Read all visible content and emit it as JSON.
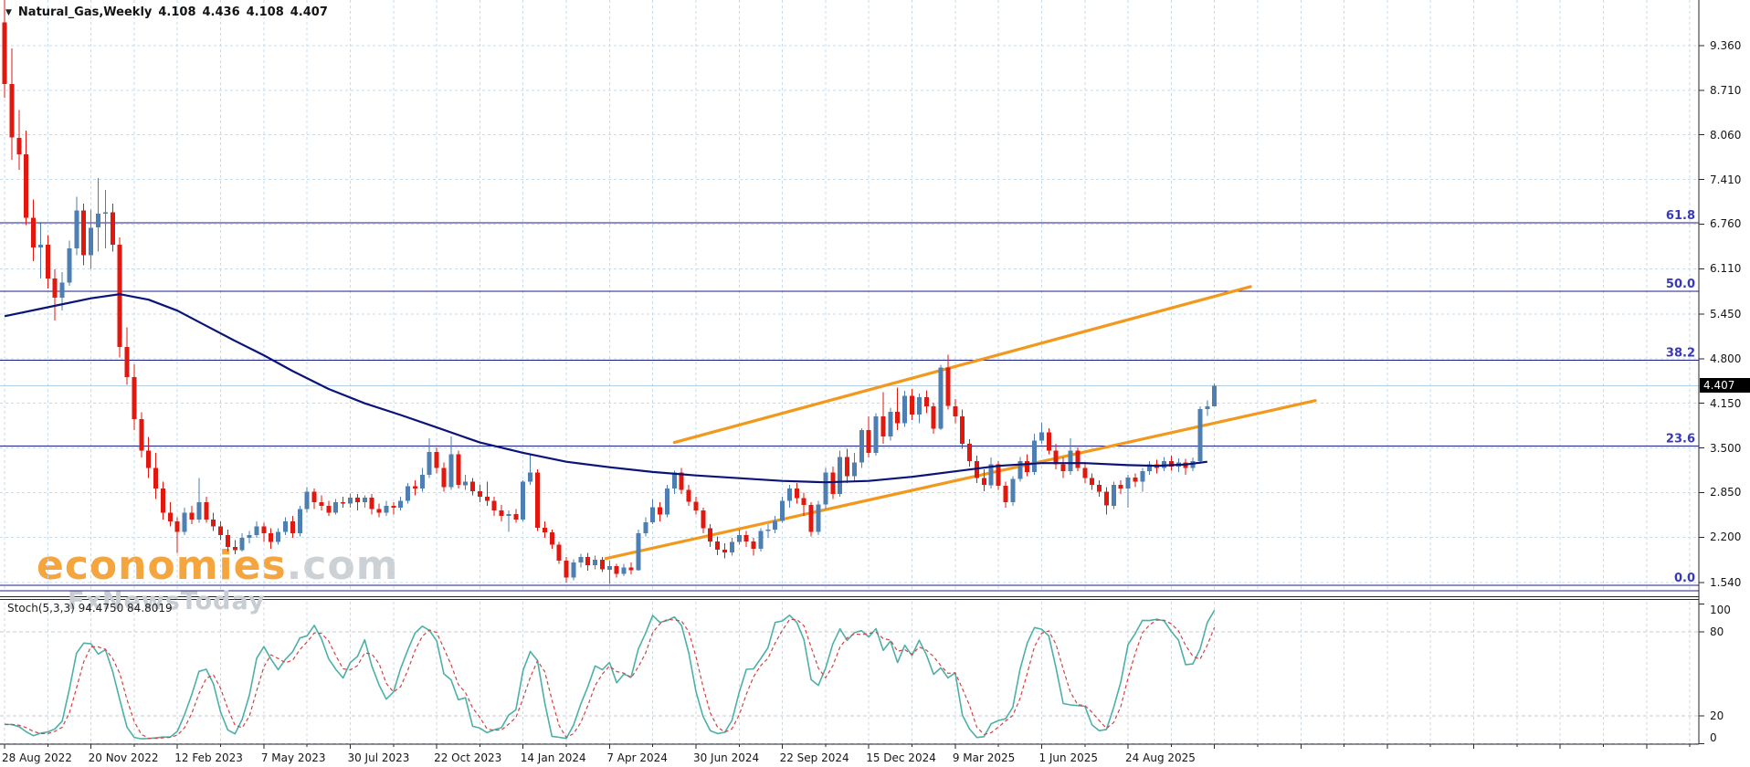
{
  "window": {
    "title_symbol": "Natural_Gas,Weekly",
    "ohlc_display": {
      "open": "4.108",
      "high": "4.436",
      "low": "4.108",
      "close": "4.407"
    }
  },
  "watermark": {
    "brand": "economies",
    "brand_suffix": ".com",
    "subtitle": "FxNewsToday"
  },
  "indicator_label": {
    "name": "Stoch(5,3,3)",
    "main_value": "94.4750",
    "signal_value": "84.8019"
  },
  "price_axis": {
    "ticks": [
      "9.360",
      "8.710",
      "8.060",
      "7.410",
      "6.760",
      "6.110",
      "5.450",
      "4.800",
      "4.150",
      "3.500",
      "2.850",
      "2.200",
      "1.540"
    ],
    "current_price": "4.407"
  },
  "stoch_axis": {
    "ticks": [
      "100",
      "80",
      "20",
      "0"
    ]
  },
  "time_axis": {
    "labels": [
      "28 Aug 2022",
      "20 Nov 2022",
      "12 Feb 2023",
      "7 May 2023",
      "30 Jul 2023",
      "22 Oct 2023",
      "14 Jan 2024",
      "7 Apr 2024",
      "30 Jun 2024",
      "22 Sep 2024",
      "15 Dec 2024",
      "9 Mar 2025",
      "1 Jun 2025",
      "24 Aug 2025"
    ]
  },
  "colors": {
    "bull": "#4d7fb2",
    "bear": "#e2180f",
    "ma": "#0a1478",
    "channel": "#f2981c",
    "fib_line": "#1c1c8a",
    "fib_text": "#3838b8",
    "grid": "#c9dbe9",
    "stoch_main": "#4cb0a6",
    "stoch_signal": "#d24343",
    "current_price_line": "#b2cfe6",
    "border": "#26262c",
    "wm_orange": "#f5a53e",
    "wm_gray": "#ccd1d6",
    "wm_sub_gray": "#c7cdd2"
  },
  "chart_data": {
    "type": "candlestick",
    "symbol": "Natural_Gas",
    "timeframe": "Weekly",
    "first_week": "28 Aug 2022",
    "ylim": [
      1.43,
      10.03
    ],
    "grid": "dashed",
    "ohlc": [
      [
        9.7,
        10.03,
        8.6,
        8.8
      ],
      [
        8.8,
        9.32,
        7.7,
        8.02
      ],
      [
        8.02,
        8.42,
        7.55,
        7.78
      ],
      [
        7.78,
        8.12,
        6.75,
        6.85
      ],
      [
        6.85,
        7.12,
        6.22,
        6.42
      ],
      [
        6.42,
        6.77,
        5.97,
        6.46
      ],
      [
        6.46,
        6.6,
        5.82,
        5.97
      ],
      [
        5.97,
        6.1,
        5.36,
        5.69
      ],
      [
        5.69,
        6.06,
        5.5,
        5.91
      ],
      [
        5.91,
        6.52,
        5.86,
        6.41
      ],
      [
        6.41,
        7.16,
        6.31,
        6.96
      ],
      [
        6.96,
        7.06,
        6.16,
        6.31
      ],
      [
        6.31,
        6.97,
        6.11,
        6.71
      ],
      [
        6.71,
        7.43,
        6.36,
        6.91
      ],
      [
        6.91,
        7.26,
        6.41,
        6.93
      ],
      [
        6.93,
        7.06,
        6.36,
        6.46
      ],
      [
        6.46,
        6.57,
        4.82,
        4.97
      ],
      [
        4.97,
        5.26,
        4.42,
        4.53
      ],
      [
        4.53,
        4.72,
        3.76,
        3.92
      ],
      [
        3.92,
        4.02,
        3.36,
        3.46
      ],
      [
        3.46,
        3.66,
        3.06,
        3.21
      ],
      [
        3.21,
        3.43,
        2.76,
        2.91
      ],
      [
        2.91,
        3.01,
        2.46,
        2.56
      ],
      [
        2.56,
        2.71,
        2.36,
        2.43
      ],
      [
        2.43,
        2.49,
        1.97,
        2.28
      ],
      [
        2.28,
        2.63,
        2.23,
        2.56
      ],
      [
        2.56,
        2.66,
        2.39,
        2.46
      ],
      [
        2.46,
        3.06,
        2.41,
        2.71
      ],
      [
        2.71,
        2.79,
        2.41,
        2.46
      ],
      [
        2.46,
        2.56,
        2.29,
        2.36
      ],
      [
        2.36,
        2.43,
        2.16,
        2.23
      ],
      [
        2.23,
        2.31,
        1.99,
        2.06
      ],
      [
        2.06,
        2.16,
        1.95,
        2.01
      ],
      [
        2.01,
        2.26,
        1.99,
        2.19
      ],
      [
        2.19,
        2.29,
        2.11,
        2.23
      ],
      [
        2.23,
        2.43,
        2.19,
        2.36
      ],
      [
        2.36,
        2.41,
        2.13,
        2.26
      ],
      [
        2.26,
        2.33,
        2.03,
        2.13
      ],
      [
        2.13,
        2.33,
        2.09,
        2.28
      ],
      [
        2.28,
        2.49,
        2.23,
        2.43
      ],
      [
        2.43,
        2.51,
        2.19,
        2.26
      ],
      [
        2.26,
        2.66,
        2.21,
        2.61
      ],
      [
        2.61,
        2.93,
        2.56,
        2.86
      ],
      [
        2.86,
        2.91,
        2.61,
        2.71
      ],
      [
        2.71,
        2.81,
        2.59,
        2.66
      ],
      [
        2.66,
        2.73,
        2.51,
        2.56
      ],
      [
        2.56,
        2.76,
        2.53,
        2.71
      ],
      [
        2.71,
        2.79,
        2.63,
        2.69
      ],
      [
        2.69,
        2.84,
        2.63,
        2.78
      ],
      [
        2.78,
        2.83,
        2.59,
        2.71
      ],
      [
        2.71,
        2.81,
        2.63,
        2.78
      ],
      [
        2.78,
        2.83,
        2.53,
        2.61
      ],
      [
        2.61,
        2.69,
        2.49,
        2.56
      ],
      [
        2.56,
        2.73,
        2.51,
        2.66
      ],
      [
        2.66,
        2.71,
        2.53,
        2.63
      ],
      [
        2.63,
        2.79,
        2.59,
        2.73
      ],
      [
        2.73,
        2.99,
        2.69,
        2.94
      ],
      [
        2.94,
        3.03,
        2.81,
        2.91
      ],
      [
        2.91,
        3.21,
        2.86,
        3.11
      ],
      [
        3.11,
        3.64,
        3.06,
        3.44
      ],
      [
        3.44,
        3.51,
        3.13,
        3.21
      ],
      [
        3.21,
        3.29,
        2.86,
        2.93
      ],
      [
        2.93,
        3.67,
        2.89,
        3.41
      ],
      [
        3.41,
        3.46,
        2.91,
        2.96
      ],
      [
        2.96,
        3.11,
        2.89,
        3.01
      ],
      [
        3.01,
        3.06,
        2.81,
        2.87
      ],
      [
        2.87,
        2.96,
        2.71,
        2.79
      ],
      [
        2.79,
        3.01,
        2.66,
        2.73
      ],
      [
        2.73,
        2.79,
        2.51,
        2.59
      ],
      [
        2.59,
        2.67,
        2.43,
        2.51
      ],
      [
        2.51,
        2.59,
        2.28,
        2.54
      ],
      [
        2.54,
        2.61,
        2.41,
        2.46
      ],
      [
        2.46,
        3.03,
        2.43,
        3.01
      ],
      [
        3.01,
        3.41,
        2.96,
        3.14
      ],
      [
        3.14,
        3.19,
        2.29,
        2.34
      ],
      [
        2.34,
        2.43,
        2.19,
        2.27
      ],
      [
        2.27,
        2.31,
        2.03,
        2.09
      ],
      [
        2.09,
        2.13,
        1.81,
        1.86
      ],
      [
        1.86,
        1.91,
        1.54,
        1.61
      ],
      [
        1.61,
        1.88,
        1.57,
        1.83
      ],
      [
        1.83,
        1.96,
        1.76,
        1.91
      ],
      [
        1.91,
        1.97,
        1.71,
        1.79
      ],
      [
        1.79,
        1.93,
        1.73,
        1.87
      ],
      [
        1.87,
        1.91,
        1.69,
        1.73
      ],
      [
        1.73,
        1.86,
        1.52,
        1.78
      ],
      [
        1.78,
        1.81,
        1.61,
        1.67
      ],
      [
        1.67,
        1.81,
        1.63,
        1.76
      ],
      [
        1.76,
        1.83,
        1.66,
        1.72
      ],
      [
        1.72,
        2.31,
        1.71,
        2.26
      ],
      [
        2.26,
        2.49,
        2.21,
        2.42
      ],
      [
        2.42,
        2.76,
        2.39,
        2.64
      ],
      [
        2.64,
        2.71,
        2.43,
        2.53
      ],
      [
        2.53,
        2.96,
        2.49,
        2.91
      ],
      [
        2.91,
        3.17,
        2.83,
        3.14
      ],
      [
        3.14,
        3.21,
        2.83,
        2.89
      ],
      [
        2.89,
        2.96,
        2.66,
        2.72
      ],
      [
        2.72,
        2.79,
        2.53,
        2.59
      ],
      [
        2.59,
        2.63,
        2.26,
        2.33
      ],
      [
        2.33,
        2.39,
        2.06,
        2.14
      ],
      [
        2.14,
        2.21,
        1.94,
        2.02
      ],
      [
        2.02,
        2.11,
        1.89,
        1.98
      ],
      [
        1.98,
        2.19,
        1.93,
        2.13
      ],
      [
        2.13,
        2.31,
        2.09,
        2.23
      ],
      [
        2.23,
        2.29,
        2.06,
        2.14
      ],
      [
        2.14,
        2.19,
        1.93,
        2.03
      ],
      [
        2.03,
        2.33,
        1.99,
        2.29
      ],
      [
        2.29,
        2.39,
        2.19,
        2.31
      ],
      [
        2.31,
        2.51,
        2.26,
        2.44
      ],
      [
        2.44,
        2.79,
        2.41,
        2.73
      ],
      [
        2.73,
        2.96,
        2.63,
        2.91
      ],
      [
        2.91,
        2.99,
        2.69,
        2.77
      ],
      [
        2.77,
        2.85,
        2.51,
        2.67
      ],
      [
        2.67,
        2.71,
        2.21,
        2.28
      ],
      [
        2.28,
        2.73,
        2.23,
        2.68
      ],
      [
        2.68,
        3.21,
        2.61,
        3.14
      ],
      [
        3.14,
        3.23,
        2.76,
        2.83
      ],
      [
        2.83,
        3.46,
        2.79,
        3.37
      ],
      [
        3.37,
        3.49,
        2.99,
        3.09
      ],
      [
        3.09,
        3.43,
        3.01,
        3.29
      ],
      [
        3.29,
        3.79,
        3.21,
        3.76
      ],
      [
        3.76,
        3.96,
        3.36,
        3.43
      ],
      [
        3.43,
        4.01,
        3.39,
        3.96
      ],
      [
        3.96,
        4.31,
        3.56,
        3.67
      ],
      [
        3.67,
        4.09,
        3.61,
        4.03
      ],
      [
        4.03,
        4.38,
        3.76,
        3.86
      ],
      [
        3.86,
        4.33,
        3.81,
        4.26
      ],
      [
        4.26,
        4.36,
        3.91,
        3.99
      ],
      [
        3.99,
        4.29,
        3.86,
        4.24
      ],
      [
        4.24,
        4.34,
        4.01,
        4.11
      ],
      [
        4.11,
        4.16,
        3.71,
        3.78
      ],
      [
        3.78,
        4.71,
        3.76,
        4.67
      ],
      [
        4.67,
        4.86,
        4.06,
        4.11
      ],
      [
        4.11,
        4.21,
        3.86,
        3.96
      ],
      [
        3.96,
        4.06,
        3.49,
        3.56
      ],
      [
        3.56,
        3.63,
        3.23,
        3.31
      ],
      [
        3.31,
        3.39,
        2.99,
        3.06
      ],
      [
        3.06,
        3.19,
        2.87,
        2.96
      ],
      [
        2.96,
        3.36,
        2.91,
        3.26
      ],
      [
        3.26,
        3.31,
        2.89,
        2.95
      ],
      [
        2.95,
        3.01,
        2.63,
        2.71
      ],
      [
        2.71,
        3.09,
        2.66,
        3.05
      ],
      [
        3.05,
        3.37,
        3.01,
        3.31
      ],
      [
        3.31,
        3.41,
        3.09,
        3.15
      ],
      [
        3.15,
        3.71,
        3.11,
        3.61
      ],
      [
        3.61,
        3.87,
        3.56,
        3.73
      ],
      [
        3.73,
        3.79,
        3.41,
        3.46
      ],
      [
        3.46,
        3.56,
        3.19,
        3.26
      ],
      [
        3.26,
        3.36,
        3.06,
        3.16
      ],
      [
        3.16,
        3.64,
        3.11,
        3.46
      ],
      [
        3.46,
        3.51,
        3.16,
        3.21
      ],
      [
        3.21,
        3.29,
        2.99,
        3.06
      ],
      [
        3.06,
        3.13,
        2.89,
        2.96
      ],
      [
        2.96,
        3.03,
        2.79,
        2.86
      ],
      [
        2.86,
        2.93,
        2.53,
        2.66
      ],
      [
        2.66,
        3.01,
        2.61,
        2.96
      ],
      [
        2.96,
        3.03,
        2.83,
        2.91
      ],
      [
        2.91,
        3.11,
        2.63,
        3.07
      ],
      [
        3.07,
        3.13,
        2.93,
        3.01
      ],
      [
        3.01,
        3.21,
        2.86,
        3.16
      ],
      [
        3.16,
        3.31,
        3.11,
        3.26
      ],
      [
        3.26,
        3.33,
        3.13,
        3.21
      ],
      [
        3.21,
        3.37,
        3.16,
        3.31
      ],
      [
        3.31,
        3.39,
        3.17,
        3.23
      ],
      [
        3.23,
        3.35,
        3.15,
        3.29
      ],
      [
        3.29,
        3.34,
        3.11,
        3.21
      ],
      [
        3.21,
        3.36,
        3.16,
        3.31
      ],
      [
        3.31,
        4.11,
        3.27,
        4.07
      ],
      [
        4.07,
        4.19,
        3.97,
        4.11
      ],
      [
        4.108,
        4.436,
        4.108,
        4.407
      ]
    ],
    "moving_average_anchors": [
      [
        0,
        5.42
      ],
      [
        6,
        5.55
      ],
      [
        12,
        5.68
      ],
      [
        16,
        5.74
      ],
      [
        20,
        5.66
      ],
      [
        24,
        5.5
      ],
      [
        28,
        5.28
      ],
      [
        32,
        5.06
      ],
      [
        36,
        4.85
      ],
      [
        40,
        4.62
      ],
      [
        45,
        4.36
      ],
      [
        50,
        4.15
      ],
      [
        55,
        3.98
      ],
      [
        60,
        3.8
      ],
      [
        66,
        3.58
      ],
      [
        72,
        3.43
      ],
      [
        78,
        3.3
      ],
      [
        84,
        3.22
      ],
      [
        90,
        3.15
      ],
      [
        96,
        3.1
      ],
      [
        102,
        3.06
      ],
      [
        108,
        3.02
      ],
      [
        114,
        3.0
      ],
      [
        120,
        3.02
      ],
      [
        126,
        3.08
      ],
      [
        132,
        3.16
      ],
      [
        138,
        3.24
      ],
      [
        144,
        3.28
      ],
      [
        150,
        3.28
      ],
      [
        156,
        3.25
      ],
      [
        160,
        3.24
      ],
      [
        164,
        3.26
      ],
      [
        167,
        3.3
      ]
    ],
    "fibonacci_levels": [
      {
        "label": "61.8",
        "price": 6.78
      },
      {
        "label": "50.0",
        "price": 5.78
      },
      {
        "label": "38.2",
        "price": 4.78
      },
      {
        "label": "23.6",
        "price": 3.53
      },
      {
        "label": "0.0",
        "price": 1.5
      }
    ],
    "trend_channel": {
      "upper": {
        "week1": 93,
        "price1": 3.58,
        "week2": 173,
        "price2": 5.85
      },
      "lower": {
        "week1": 83.5,
        "price1": 1.89,
        "week2": 182,
        "price2": 4.19
      }
    },
    "current_price": 4.407,
    "stochastic": {
      "settings": [
        5,
        3,
        3
      ],
      "scale_ticks": [
        100,
        80,
        20,
        0
      ]
    }
  }
}
